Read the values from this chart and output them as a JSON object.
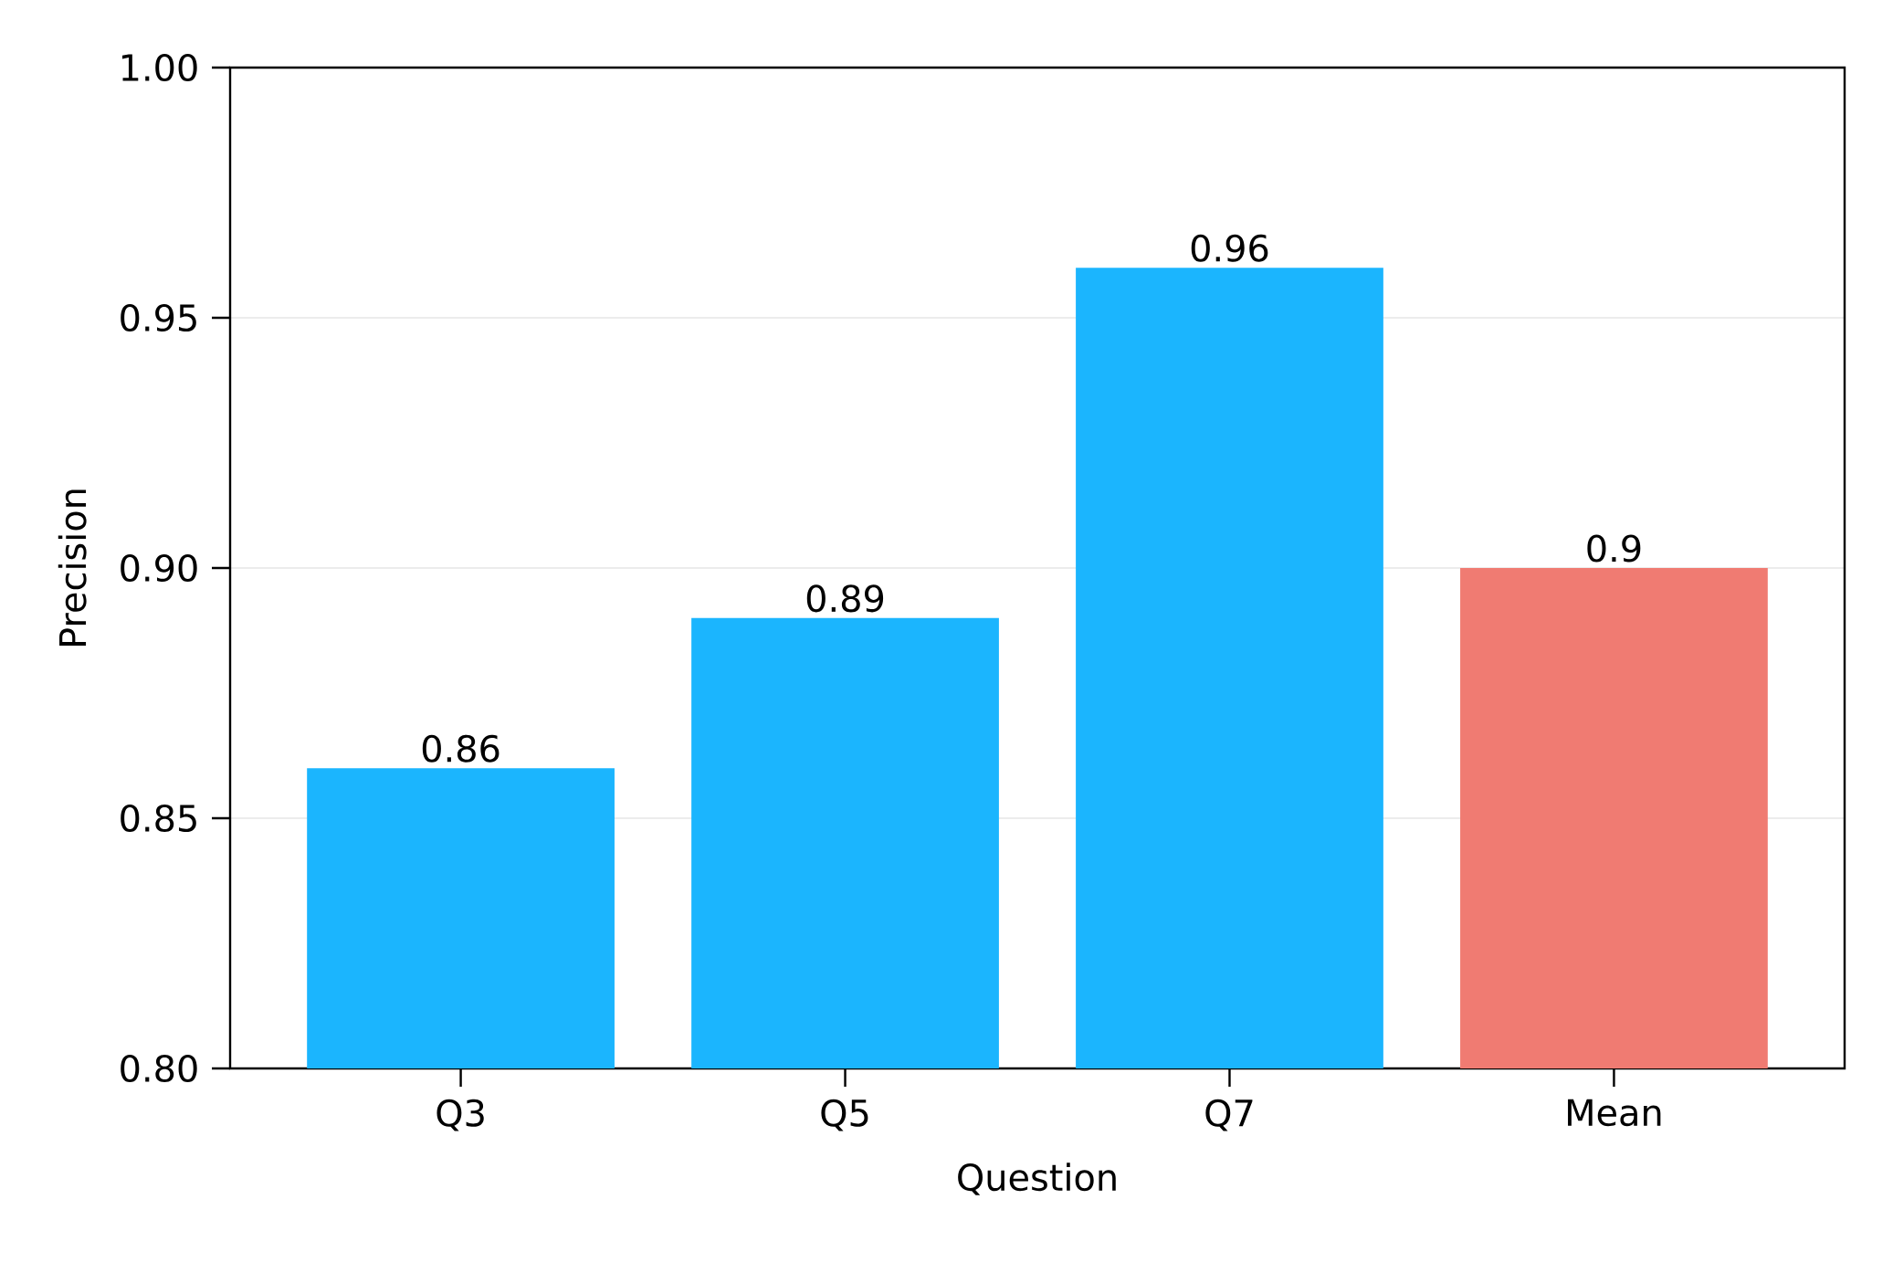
{
  "chart_data": {
    "type": "bar",
    "xlabel": "Question",
    "ylabel": "Precision",
    "categories": [
      "Q3",
      "Q5",
      "Q7",
      "Mean"
    ],
    "values": [
      0.86,
      0.89,
      0.96,
      0.9
    ],
    "colors": [
      "#1bb5fe",
      "#1bb5fe",
      "#1bb5fe",
      "#f07b72"
    ],
    "value_labels": [
      "0.86",
      "0.89",
      "0.96",
      "0.9"
    ],
    "ylim": [
      0.8,
      1.0
    ],
    "yticks": [
      {
        "value": 0.8,
        "label": "0.80"
      },
      {
        "value": 0.85,
        "label": "0.85"
      },
      {
        "value": 0.9,
        "label": "0.90"
      },
      {
        "value": 0.95,
        "label": "0.95"
      },
      {
        "value": 1.0,
        "label": "1.00"
      }
    ],
    "grid": "y"
  }
}
